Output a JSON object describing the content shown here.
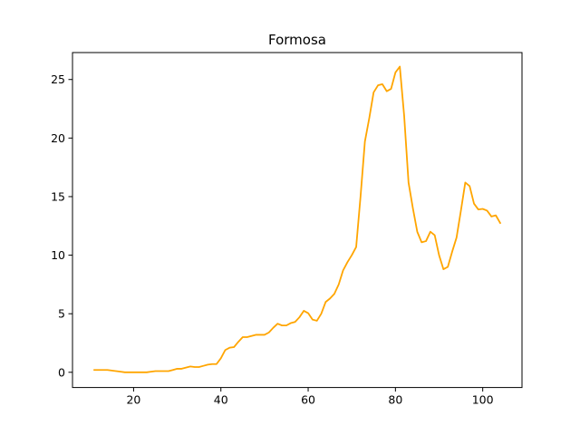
{
  "chart_data": {
    "type": "line",
    "title": "Formosa",
    "xlabel": "",
    "ylabel": "",
    "xlim": [
      6,
      109
    ],
    "ylim": [
      -1.3,
      27.3
    ],
    "xticks": [
      20,
      40,
      60,
      80,
      100
    ],
    "yticks": [
      0,
      5,
      10,
      15,
      20,
      25
    ],
    "grid": false,
    "series": [
      {
        "color": "#ffa500",
        "x": [
          11,
          12,
          13,
          14,
          15,
          16,
          17,
          18,
          19,
          20,
          21,
          22,
          23,
          24,
          25,
          26,
          27,
          28,
          29,
          30,
          31,
          32,
          33,
          34,
          35,
          36,
          37,
          38,
          39,
          40,
          41,
          42,
          43,
          44,
          45,
          46,
          47,
          48,
          49,
          50,
          51,
          52,
          53,
          54,
          55,
          56,
          57,
          58,
          59,
          60,
          61,
          62,
          63,
          64,
          65,
          66,
          67,
          68,
          69,
          70,
          71,
          72,
          73,
          74,
          75,
          76,
          77,
          78,
          79,
          80,
          81,
          82,
          83,
          84,
          85,
          86,
          87,
          88,
          89,
          90,
          91,
          92,
          93,
          94,
          95,
          96,
          97,
          98,
          99,
          100,
          101,
          102,
          103,
          104
        ],
        "y": [
          0.2,
          0.2,
          0.2,
          0.2,
          0.15,
          0.1,
          0.05,
          0,
          0,
          0,
          0,
          0,
          0,
          0.05,
          0.1,
          0.1,
          0.1,
          0.1,
          0.2,
          0.3,
          0.3,
          0.4,
          0.5,
          0.45,
          0.45,
          0.55,
          0.65,
          0.7,
          0.7,
          1.2,
          1.9,
          2.1,
          2.15,
          2.6,
          3.0,
          3.0,
          3.1,
          3.2,
          3.2,
          3.2,
          3.4,
          3.8,
          4.15,
          4.0,
          4.0,
          4.2,
          4.3,
          4.7,
          5.25,
          5.05,
          4.5,
          4.4,
          5.0,
          6.0,
          6.3,
          6.7,
          7.5,
          8.7,
          9.4,
          10.0,
          10.7,
          15.0,
          19.7,
          21.7,
          23.9,
          24.5,
          24.6,
          24.0,
          24.2,
          25.6,
          26.1,
          21.9,
          16.2,
          14.0,
          12.0,
          11.1,
          11.2,
          12.0,
          11.7,
          10.0,
          8.8,
          9.0,
          10.3,
          11.5,
          13.8,
          16.2,
          15.9,
          14.4,
          13.9,
          13.95,
          13.8,
          13.3,
          13.4,
          12.75
        ]
      }
    ]
  }
}
